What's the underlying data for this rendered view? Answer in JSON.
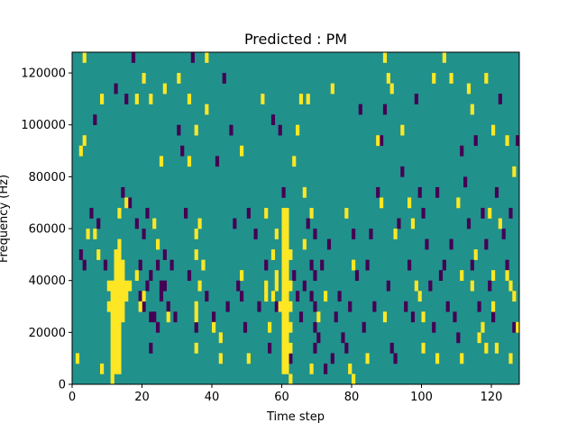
{
  "chart_data": {
    "type": "heatmap",
    "title": "Predicted : PM",
    "xlabel": "Time step",
    "ylabel": "Frequency (Hz)",
    "xlim": [
      0,
      128
    ],
    "ylim": [
      0,
      128000
    ],
    "x_ticks": [
      0,
      20,
      40,
      60,
      80,
      100,
      120
    ],
    "y_ticks": [
      0,
      20000,
      40000,
      60000,
      80000,
      100000,
      120000
    ],
    "x_tick_labels": [
      "0",
      "20",
      "40",
      "60",
      "80",
      "100",
      "120"
    ],
    "y_tick_labels": [
      "0",
      "20000",
      "40000",
      "60000",
      "80000",
      "100000",
      "120000"
    ],
    "grid": false,
    "colormap": "viridis",
    "colors": {
      "background": "#21918c",
      "high": "#fde725",
      "low": "#440154"
    },
    "cell_height_hz": 4000,
    "high_cells": [
      [
        1,
        8000
      ],
      [
        2,
        88000
      ],
      [
        3,
        124000
      ],
      [
        3,
        92000
      ],
      [
        4,
        56000
      ],
      [
        6,
        56000
      ],
      [
        7,
        48000
      ],
      [
        8,
        108000
      ],
      [
        8,
        4000
      ],
      [
        10,
        36000
      ],
      [
        10,
        28000
      ],
      [
        11,
        36000
      ],
      [
        11,
        32000
      ],
      [
        11,
        28000
      ],
      [
        11,
        24000
      ],
      [
        11,
        20000
      ],
      [
        11,
        16000
      ],
      [
        11,
        12000
      ],
      [
        11,
        8000
      ],
      [
        11,
        4000
      ],
      [
        11,
        0
      ],
      [
        12,
        48000
      ],
      [
        12,
        44000
      ],
      [
        12,
        40000
      ],
      [
        12,
        36000
      ],
      [
        12,
        32000
      ],
      [
        12,
        28000
      ],
      [
        12,
        24000
      ],
      [
        12,
        20000
      ],
      [
        12,
        16000
      ],
      [
        12,
        12000
      ],
      [
        12,
        8000
      ],
      [
        12,
        4000
      ],
      [
        13,
        64000
      ],
      [
        13,
        52000
      ],
      [
        13,
        48000
      ],
      [
        13,
        44000
      ],
      [
        13,
        40000
      ],
      [
        13,
        36000
      ],
      [
        13,
        32000
      ],
      [
        13,
        28000
      ],
      [
        13,
        24000
      ],
      [
        13,
        20000
      ],
      [
        13,
        16000
      ],
      [
        13,
        12000
      ],
      [
        13,
        8000
      ],
      [
        13,
        4000
      ],
      [
        14,
        44000
      ],
      [
        14,
        40000
      ],
      [
        14,
        36000
      ],
      [
        14,
        32000
      ],
      [
        14,
        28000
      ],
      [
        14,
        24000
      ],
      [
        15,
        68000
      ],
      [
        15,
        36000
      ],
      [
        15,
        32000
      ],
      [
        16,
        36000
      ],
      [
        18,
        108000
      ],
      [
        18,
        40000
      ],
      [
        19,
        28000
      ],
      [
        20,
        116000
      ],
      [
        20,
        32000
      ],
      [
        22,
        108000
      ],
      [
        23,
        60000
      ],
      [
        24,
        52000
      ],
      [
        25,
        84000
      ],
      [
        26,
        112000
      ],
      [
        27,
        24000
      ],
      [
        30,
        116000
      ],
      [
        33,
        108000
      ],
      [
        33,
        84000
      ],
      [
        35,
        96000
      ],
      [
        35,
        56000
      ],
      [
        35,
        48000
      ],
      [
        35,
        28000
      ],
      [
        35,
        24000
      ],
      [
        35,
        12000
      ],
      [
        36,
        60000
      ],
      [
        36,
        36000
      ],
      [
        37,
        44000
      ],
      [
        38,
        124000
      ],
      [
        38,
        104000
      ],
      [
        40,
        20000
      ],
      [
        42,
        16000
      ],
      [
        42,
        8000
      ],
      [
        48,
        88000
      ],
      [
        48,
        40000
      ],
      [
        50,
        8000
      ],
      [
        54,
        108000
      ],
      [
        55,
        64000
      ],
      [
        55,
        36000
      ],
      [
        55,
        32000
      ],
      [
        56,
        20000
      ],
      [
        57,
        48000
      ],
      [
        57,
        32000
      ],
      [
        58,
        56000
      ],
      [
        58,
        40000
      ],
      [
        58,
        36000
      ],
      [
        59,
        28000
      ],
      [
        60,
        64000
      ],
      [
        60,
        60000
      ],
      [
        60,
        56000
      ],
      [
        60,
        52000
      ],
      [
        60,
        48000
      ],
      [
        60,
        44000
      ],
      [
        60,
        40000
      ],
      [
        60,
        36000
      ],
      [
        60,
        32000
      ],
      [
        60,
        28000
      ],
      [
        60,
        24000
      ],
      [
        60,
        20000
      ],
      [
        60,
        16000
      ],
      [
        60,
        12000
      ],
      [
        60,
        8000
      ],
      [
        60,
        4000
      ],
      [
        61,
        64000
      ],
      [
        61,
        60000
      ],
      [
        61,
        56000
      ],
      [
        61,
        52000
      ],
      [
        61,
        48000
      ],
      [
        61,
        44000
      ],
      [
        61,
        40000
      ],
      [
        61,
        36000
      ],
      [
        61,
        32000
      ],
      [
        61,
        28000
      ],
      [
        61,
        24000
      ],
      [
        61,
        20000
      ],
      [
        61,
        16000
      ],
      [
        61,
        12000
      ],
      [
        61,
        8000
      ],
      [
        61,
        4000
      ],
      [
        62,
        48000
      ],
      [
        62,
        36000
      ],
      [
        62,
        28000
      ],
      [
        62,
        20000
      ],
      [
        62,
        12000
      ],
      [
        62,
        0
      ],
      [
        63,
        84000
      ],
      [
        64,
        96000
      ],
      [
        65,
        108000
      ],
      [
        66,
        72000
      ],
      [
        66,
        52000
      ],
      [
        67,
        108000
      ],
      [
        68,
        64000
      ],
      [
        68,
        4000
      ],
      [
        70,
        24000
      ],
      [
        72,
        32000
      ],
      [
        74,
        112000
      ],
      [
        78,
        64000
      ],
      [
        79,
        4000
      ],
      [
        80,
        44000
      ],
      [
        80,
        0
      ],
      [
        84,
        8000
      ],
      [
        87,
        92000
      ],
      [
        88,
        68000
      ],
      [
        89,
        124000
      ],
      [
        89,
        24000
      ],
      [
        90,
        116000
      ],
      [
        91,
        112000
      ],
      [
        92,
        56000
      ],
      [
        94,
        96000
      ],
      [
        96,
        68000
      ],
      [
        97,
        60000
      ],
      [
        98,
        36000
      ],
      [
        99,
        32000
      ],
      [
        100,
        24000
      ],
      [
        100,
        12000
      ],
      [
        103,
        116000
      ],
      [
        104,
        8000
      ],
      [
        106,
        124000
      ],
      [
        108,
        116000
      ],
      [
        110,
        68000
      ],
      [
        111,
        40000
      ],
      [
        111,
        8000
      ],
      [
        113,
        112000
      ],
      [
        114,
        36000
      ],
      [
        114,
        104000
      ],
      [
        115,
        48000
      ],
      [
        116,
        16000
      ],
      [
        117,
        20000
      ],
      [
        118,
        116000
      ],
      [
        118,
        12000
      ],
      [
        119,
        64000
      ],
      [
        120,
        40000
      ],
      [
        120,
        28000
      ],
      [
        120,
        96000
      ],
      [
        121,
        12000
      ],
      [
        122,
        60000
      ],
      [
        124,
        40000
      ],
      [
        124,
        92000
      ],
      [
        125,
        36000
      ],
      [
        125,
        8000
      ],
      [
        126,
        32000
      ],
      [
        126,
        80000
      ],
      [
        127,
        20000
      ]
    ],
    "low_cells": [
      [
        2,
        48000
      ],
      [
        3,
        44000
      ],
      [
        5,
        64000
      ],
      [
        6,
        100000
      ],
      [
        7,
        60000
      ],
      [
        9,
        44000
      ],
      [
        12,
        112000
      ],
      [
        14,
        72000
      ],
      [
        15,
        108000
      ],
      [
        16,
        68000
      ],
      [
        17,
        124000
      ],
      [
        18,
        60000
      ],
      [
        19,
        44000
      ],
      [
        19,
        32000
      ],
      [
        20,
        56000
      ],
      [
        20,
        28000
      ],
      [
        21,
        64000
      ],
      [
        21,
        36000
      ],
      [
        22,
        40000
      ],
      [
        22,
        24000
      ],
      [
        22,
        12000
      ],
      [
        23,
        24000
      ],
      [
        24,
        44000
      ],
      [
        24,
        20000
      ],
      [
        25,
        36000
      ],
      [
        25,
        32000
      ],
      [
        26,
        48000
      ],
      [
        26,
        36000
      ],
      [
        27,
        28000
      ],
      [
        28,
        44000
      ],
      [
        29,
        24000
      ],
      [
        30,
        96000
      ],
      [
        31,
        88000
      ],
      [
        32,
        64000
      ],
      [
        33,
        40000
      ],
      [
        34,
        124000
      ],
      [
        35,
        20000
      ],
      [
        38,
        32000
      ],
      [
        40,
        24000
      ],
      [
        41,
        84000
      ],
      [
        43,
        116000
      ],
      [
        44,
        28000
      ],
      [
        45,
        96000
      ],
      [
        46,
        60000
      ],
      [
        47,
        36000
      ],
      [
        48,
        32000
      ],
      [
        49,
        20000
      ],
      [
        50,
        64000
      ],
      [
        52,
        56000
      ],
      [
        53,
        28000
      ],
      [
        55,
        44000
      ],
      [
        56,
        12000
      ],
      [
        57,
        100000
      ],
      [
        58,
        28000
      ],
      [
        59,
        96000
      ],
      [
        60,
        72000
      ],
      [
        62,
        8000
      ],
      [
        63,
        40000
      ],
      [
        64,
        32000
      ],
      [
        65,
        24000
      ],
      [
        66,
        36000
      ],
      [
        67,
        60000
      ],
      [
        68,
        44000
      ],
      [
        68,
        32000
      ],
      [
        69,
        56000
      ],
      [
        69,
        40000
      ],
      [
        69,
        28000
      ],
      [
        69,
        20000
      ],
      [
        69,
        12000
      ],
      [
        70,
        16000
      ],
      [
        71,
        44000
      ],
      [
        72,
        4000
      ],
      [
        73,
        52000
      ],
      [
        74,
        8000
      ],
      [
        75,
        24000
      ],
      [
        76,
        32000
      ],
      [
        77,
        16000
      ],
      [
        78,
        12000
      ],
      [
        79,
        28000
      ],
      [
        80,
        56000
      ],
      [
        81,
        40000
      ],
      [
        82,
        104000
      ],
      [
        83,
        20000
      ],
      [
        84,
        44000
      ],
      [
        85,
        56000
      ],
      [
        86,
        28000
      ],
      [
        87,
        72000
      ],
      [
        88,
        92000
      ],
      [
        89,
        104000
      ],
      [
        90,
        36000
      ],
      [
        91,
        12000
      ],
      [
        92,
        8000
      ],
      [
        93,
        60000
      ],
      [
        94,
        80000
      ],
      [
        95,
        28000
      ],
      [
        96,
        44000
      ],
      [
        97,
        24000
      ],
      [
        98,
        108000
      ],
      [
        99,
        72000
      ],
      [
        100,
        64000
      ],
      [
        101,
        52000
      ],
      [
        102,
        36000
      ],
      [
        103,
        20000
      ],
      [
        104,
        72000
      ],
      [
        105,
        40000
      ],
      [
        106,
        44000
      ],
      [
        107,
        28000
      ],
      [
        108,
        52000
      ],
      [
        109,
        24000
      ],
      [
        110,
        16000
      ],
      [
        111,
        88000
      ],
      [
        112,
        76000
      ],
      [
        113,
        60000
      ],
      [
        114,
        44000
      ],
      [
        115,
        92000
      ],
      [
        116,
        28000
      ],
      [
        117,
        64000
      ],
      [
        118,
        52000
      ],
      [
        119,
        36000
      ],
      [
        120,
        24000
      ],
      [
        121,
        72000
      ],
      [
        122,
        108000
      ],
      [
        123,
        56000
      ],
      [
        124,
        44000
      ],
      [
        125,
        64000
      ],
      [
        126,
        20000
      ],
      [
        127,
        92000
      ]
    ]
  }
}
